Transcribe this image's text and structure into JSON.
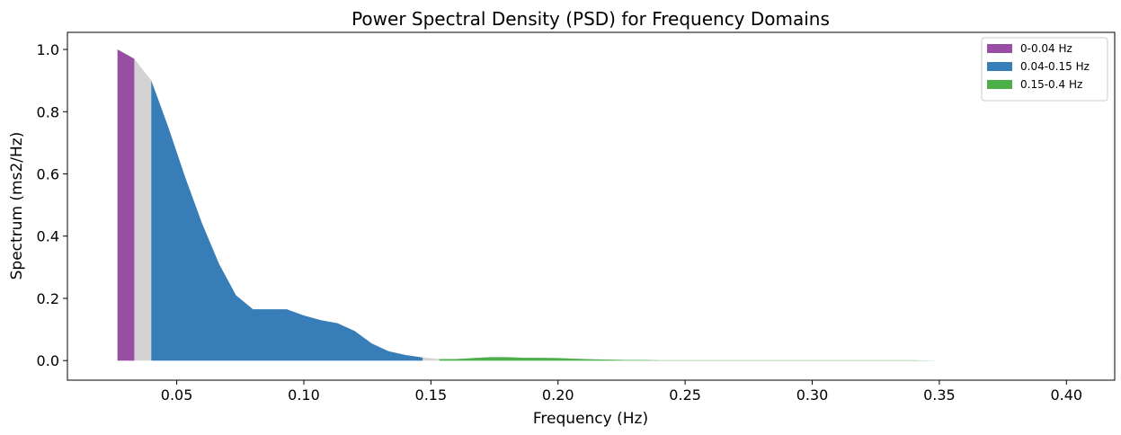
{
  "chart_data": {
    "type": "area",
    "title": "Power Spectral Density (PSD) for Frequency Domains",
    "xlabel": "Frequency (Hz)",
    "ylabel": "Spectrum (ms2/Hz)",
    "xlim": [
      0.007,
      0.419
    ],
    "ylim": [
      -0.063,
      1.055
    ],
    "xticks": [
      0.05,
      0.1,
      0.15,
      0.2,
      0.25,
      0.3,
      0.35,
      0.4
    ],
    "xtick_labels": [
      "0.05",
      "0.10",
      "0.15",
      "0.20",
      "0.25",
      "0.30",
      "0.35",
      "0.40"
    ],
    "yticks": [
      0.0,
      0.2,
      0.4,
      0.6,
      0.8,
      1.0
    ],
    "ytick_labels": [
      "0.0",
      "0.2",
      "0.4",
      "0.6",
      "0.8",
      "1.0"
    ],
    "legend_position": "top-right",
    "gap_color": "#d3d3d3",
    "spectrum": {
      "x": [
        0.0267,
        0.0333,
        0.04,
        0.0467,
        0.0533,
        0.06,
        0.0667,
        0.0733,
        0.08,
        0.0867,
        0.0933,
        0.1,
        0.1067,
        0.1133,
        0.12,
        0.1267,
        0.1333,
        0.14,
        0.1467,
        0.1533,
        0.16,
        0.1667,
        0.1733,
        0.18,
        0.1867,
        0.1933,
        0.2,
        0.2067,
        0.2133,
        0.22,
        0.2267,
        0.2333,
        0.24,
        0.25,
        0.26,
        0.27,
        0.28,
        0.29,
        0.3,
        0.31,
        0.32,
        0.33,
        0.34,
        0.35,
        0.36,
        0.37,
        0.38,
        0.3933,
        0.4
      ],
      "y": [
        1.0,
        0.97,
        0.9,
        0.75,
        0.59,
        0.44,
        0.31,
        0.21,
        0.165,
        0.165,
        0.165,
        0.145,
        0.13,
        0.12,
        0.095,
        0.055,
        0.03,
        0.018,
        0.01,
        0.005,
        0.005,
        0.008,
        0.011,
        0.011,
        0.009,
        0.009,
        0.008,
        0.006,
        0.004,
        0.003,
        0.002,
        0.002,
        0.001,
        0.001,
        0.001,
        0.001,
        0.001,
        0.001,
        0.001,
        0.001,
        0.001,
        0.001,
        0.001,
        0.0,
        0.0,
        0.0,
        0.0,
        0.0,
        0.0
      ]
    },
    "series": [
      {
        "name": "0-0.04 Hz",
        "color": "#984ea3",
        "band": [
          0.0267,
          0.0333
        ]
      },
      {
        "name": "0.04-0.15 Hz",
        "color": "#377eb8",
        "band": [
          0.04,
          0.1467
        ]
      },
      {
        "name": "0.15-0.4 Hz",
        "color": "#4daf4a",
        "band": [
          0.1533,
          0.3933
        ]
      }
    ]
  }
}
